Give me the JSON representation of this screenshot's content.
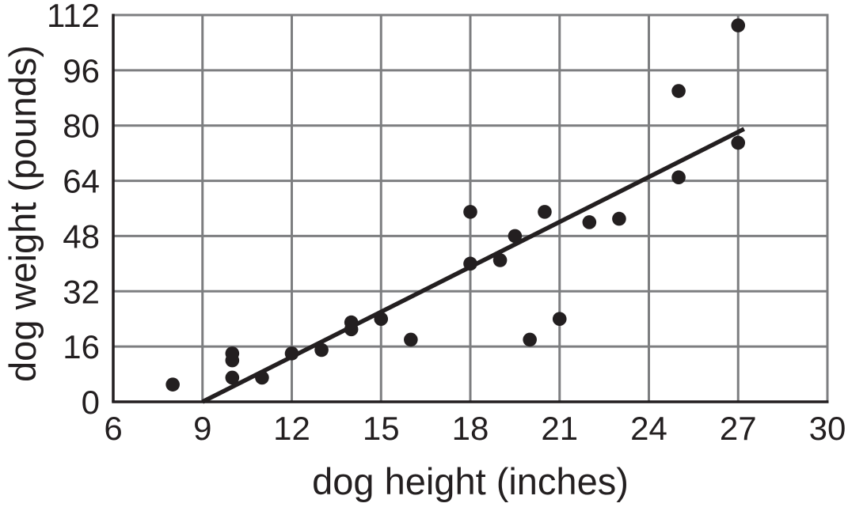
{
  "chart_data": {
    "type": "scatter",
    "title": "",
    "xlabel": "dog height (inches)",
    "ylabel": "dog weight (pounds)",
    "xlim": [
      6,
      30
    ],
    "ylim": [
      0,
      112
    ],
    "x_ticks": [
      6,
      9,
      12,
      15,
      18,
      21,
      24,
      27,
      30
    ],
    "y_ticks": [
      0,
      16,
      32,
      48,
      64,
      80,
      96,
      112
    ],
    "grid": true,
    "legend": "none",
    "points": [
      [
        8,
        5
      ],
      [
        10,
        7
      ],
      [
        10,
        12
      ],
      [
        10,
        14
      ],
      [
        11,
        7
      ],
      [
        12,
        14
      ],
      [
        13,
        15
      ],
      [
        14,
        21
      ],
      [
        14,
        23
      ],
      [
        15,
        24
      ],
      [
        16,
        18
      ],
      [
        18,
        40
      ],
      [
        18,
        55
      ],
      [
        19,
        41
      ],
      [
        19.5,
        48
      ],
      [
        20,
        18
      ],
      [
        20.5,
        55
      ],
      [
        21,
        24
      ],
      [
        22,
        52
      ],
      [
        23,
        53
      ],
      [
        25,
        65
      ],
      [
        25,
        90
      ],
      [
        27,
        75
      ],
      [
        27,
        109
      ]
    ],
    "trend_line": {
      "x1": 9,
      "y1": 0,
      "x2": 27.2,
      "y2": 79
    },
    "colors": {
      "points": "#231f20",
      "trend_line": "#231f20",
      "grid": "#7d7e80",
      "axis": "#231f20",
      "text": "#231f20",
      "background": "#ffffff"
    }
  }
}
